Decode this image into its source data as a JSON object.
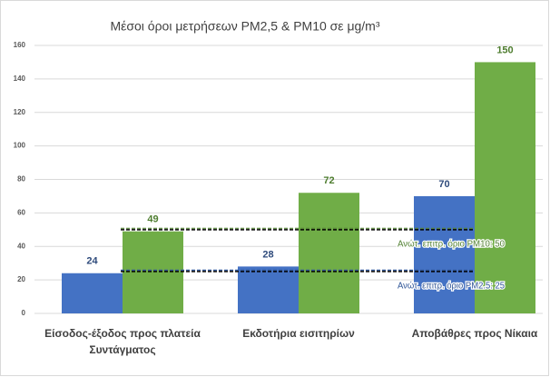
{
  "chart_data": {
    "type": "bar",
    "title": "Μέσοι όροι μετρήσεων PM2,5 & PM10 σε μg/m³",
    "categories": [
      "Είσοδος-έξοδος προς πλατεία Συντάγματος",
      "Εκδοτήρια εισιτηρίων",
      "Αποβάθρες προς Νίκαια"
    ],
    "series": [
      {
        "color": "#4472c4",
        "label_color": "#2f4b7c",
        "values": [
          24,
          28,
          70
        ]
      },
      {
        "color": "#70ad47",
        "label_color": "#4e7d2f",
        "values": [
          49,
          72,
          150
        ]
      }
    ],
    "annotations": [
      {
        "label": "Ανώτ. επιτρ. όριο PM10: 50",
        "value": 50,
        "color": "#548235"
      },
      {
        "label": "Ανώτ. επιτρ. όριο PM2.5: 25",
        "value": 25,
        "color": "#2f5597"
      }
    ],
    "ylim": [
      0,
      160
    ],
    "yticks": [
      0,
      20,
      40,
      60,
      80,
      100,
      120,
      140,
      160
    ],
    "grid": true
  }
}
